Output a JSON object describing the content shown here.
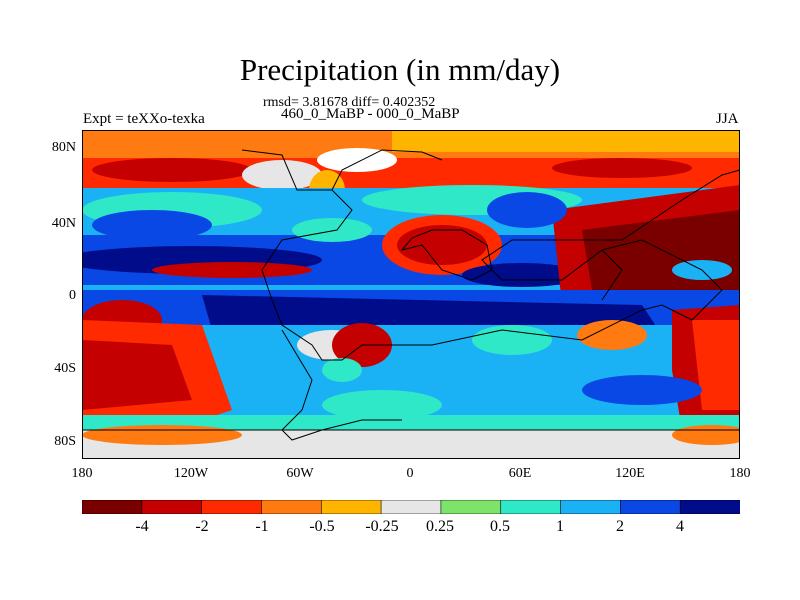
{
  "plot": {
    "title": "Precipitation (in mm/day)",
    "stats": "rmsd= 3.81678 diff= 0.402352",
    "subtitle": "460_0_MaBP - 000_0_MaBP",
    "left_label": "Expt = teXXo-texka",
    "right_label": "JJA"
  },
  "axes": {
    "y_ticks": [
      "80N",
      "40N",
      "0",
      "40S",
      "80S"
    ],
    "x_ticks": [
      "180",
      "120W",
      "60W",
      "0",
      "60E",
      "120E",
      "180"
    ]
  },
  "colorbar": {
    "labels": [
      "-4",
      "-2",
      "-1",
      "-0.5",
      "-0.25",
      "0.25",
      "0.5",
      "1",
      "2",
      "4"
    ],
    "colors": [
      "#7a0000",
      "#c40000",
      "#ff2a00",
      "#ff7a10",
      "#ffb400",
      "#e6e6e6",
      "#7ee36a",
      "#2ee8c8",
      "#1ab2f5",
      "#0a48e6",
      "#000c8a"
    ]
  },
  "map_regions": [
    {
      "name": "arctic-band",
      "level": -0.5,
      "bbox_deg": [
        -180,
        60,
        180,
        90
      ]
    },
    {
      "name": "n-pacific-blue",
      "level": 2,
      "bbox_deg": [
        -180,
        20,
        -90,
        45
      ]
    },
    {
      "name": "tropical-pacific-dark",
      "level": 4,
      "bbox_deg": [
        -180,
        0,
        -90,
        15
      ]
    },
    {
      "name": "s-pacific-red",
      "level": -2,
      "bbox_deg": [
        -180,
        -60,
        -120,
        -5
      ]
    },
    {
      "name": "asia-drying",
      "level": -4,
      "bbox_deg": [
        60,
        0,
        180,
        55
      ]
    },
    {
      "name": "s-indian-pacific-red",
      "level": -2,
      "bbox_deg": [
        140,
        -75,
        180,
        -10
      ]
    },
    {
      "name": "equatorial-wet-band",
      "level": 4,
      "bbox_deg": [
        -100,
        -20,
        120,
        -5
      ]
    },
    {
      "name": "antarctic-grey",
      "level": 0,
      "bbox_deg": [
        -180,
        -90,
        180,
        -68
      ]
    }
  ]
}
